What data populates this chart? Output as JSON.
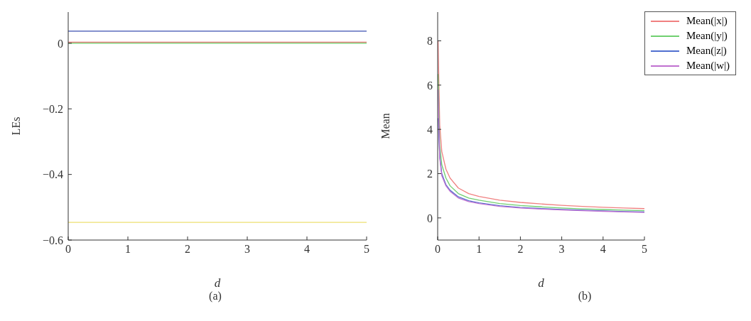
{
  "chart_data": [
    {
      "type": "line",
      "xlabel": "d",
      "ylabel": "LEs",
      "annotations": [
        "(a)"
      ],
      "xlim": [
        0,
        5
      ],
      "xticks": [
        0,
        1,
        2,
        3,
        4,
        5
      ],
      "ylim": [
        -0.6,
        0.095
      ],
      "yticks": [
        {
          "value": -0.6,
          "label": "−0.6"
        },
        {
          "value": -0.4,
          "label": "−0.4"
        },
        {
          "value": -0.2,
          "label": "−0.2"
        },
        0
      ],
      "grid": false,
      "marker": "none",
      "line_style": "solid",
      "x": [
        0,
        1,
        2,
        3,
        4,
        5
      ],
      "series": [
        {
          "color": "#3a4fb0",
          "values": [
            0.037,
            0.037,
            0.037,
            0.037,
            0.037,
            0.037
          ]
        },
        {
          "color": "#e87a7a",
          "values": [
            0.003,
            0.003,
            0.003,
            0.003,
            0.003,
            0.003
          ]
        },
        {
          "color": "#6ccf6c",
          "values": [
            0,
            0,
            0,
            0,
            0,
            0
          ]
        },
        {
          "color": "#ede070",
          "values": [
            -0.546,
            -0.546,
            -0.546,
            -0.546,
            -0.546,
            -0.546
          ]
        }
      ]
    },
    {
      "type": "line",
      "xlabel": "d",
      "ylabel": "Mean",
      "annotations": [
        "(b)"
      ],
      "xlim": [
        0,
        5
      ],
      "xticks": [
        0,
        1,
        2,
        3,
        4,
        5
      ],
      "ylim": [
        -1,
        9.3
      ],
      "yticks": [
        0,
        2,
        4,
        6,
        8
      ],
      "grid": false,
      "marker": "none",
      "line_style": "solid",
      "legend": "top right",
      "x": [
        0.01,
        0.05,
        0.1,
        0.2,
        0.3,
        0.5,
        0.75,
        1,
        1.5,
        2,
        2.5,
        3,
        3.5,
        4,
        4.5,
        5
      ],
      "series": [
        {
          "name": "Mean(|x|)",
          "color": "#f08080",
          "values": [
            8.0,
            4.2,
            3.0,
            2.2,
            1.8,
            1.35,
            1.1,
            0.97,
            0.8,
            0.7,
            0.63,
            0.57,
            0.52,
            0.48,
            0.45,
            0.42
          ]
        },
        {
          "name": "Mean(|y|)",
          "color": "#70d070",
          "values": [
            6.5,
            3.3,
            2.4,
            1.8,
            1.45,
            1.1,
            0.9,
            0.8,
            0.65,
            0.56,
            0.5,
            0.45,
            0.41,
            0.38,
            0.35,
            0.33
          ]
        },
        {
          "name": "Mean(|z|)",
          "color": "#5070d0",
          "values": [
            4.5,
            2.8,
            2.0,
            1.5,
            1.25,
            0.95,
            0.78,
            0.68,
            0.55,
            0.47,
            0.42,
            0.38,
            0.35,
            0.32,
            0.29,
            0.27
          ]
        },
        {
          "name": "Mean(|w|)",
          "color": "#c070d0",
          "values": [
            5.8,
            2.7,
            1.9,
            1.45,
            1.2,
            0.9,
            0.74,
            0.65,
            0.52,
            0.45,
            0.4,
            0.36,
            0.33,
            0.3,
            0.27,
            0.25
          ]
        }
      ]
    }
  ]
}
